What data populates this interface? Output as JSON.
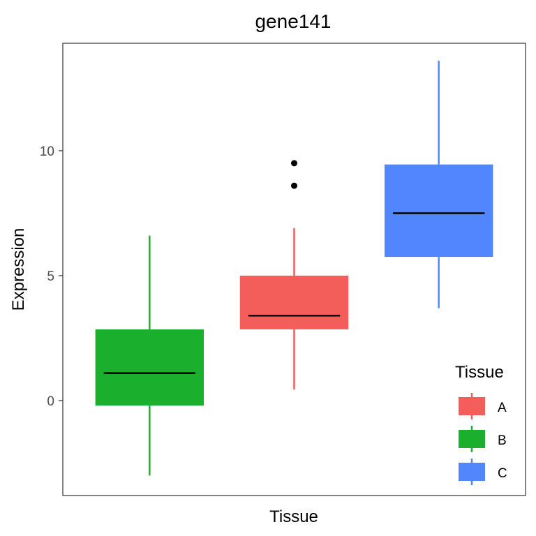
{
  "chart_data": {
    "type": "box",
    "title": "gene141",
    "xlabel": "Tissue",
    "ylabel": "Expression",
    "ylim": [
      -3.8,
      14.3
    ],
    "yticks": [
      0,
      5,
      10
    ],
    "grid": false,
    "legend": {
      "title": "Tissue",
      "position": "bottom-right (inside)"
    },
    "series": [
      {
        "name": "B",
        "color": "#1AAF2D",
        "min": -3.0,
        "q1": -0.2,
        "median": 1.1,
        "q3": 2.85,
        "max": 6.6,
        "outliers": []
      },
      {
        "name": "A",
        "color": "#F35E5A",
        "min": 0.45,
        "q1": 2.85,
        "median": 3.4,
        "q3": 5.0,
        "max": 6.9,
        "outliers": [
          8.6,
          9.5
        ]
      },
      {
        "name": "C",
        "color": "#5286FF",
        "min": 3.7,
        "q1": 5.75,
        "median": 7.5,
        "q3": 9.45,
        "max": 13.6,
        "outliers": []
      }
    ],
    "legend_order": [
      "A",
      "B",
      "C"
    ]
  }
}
